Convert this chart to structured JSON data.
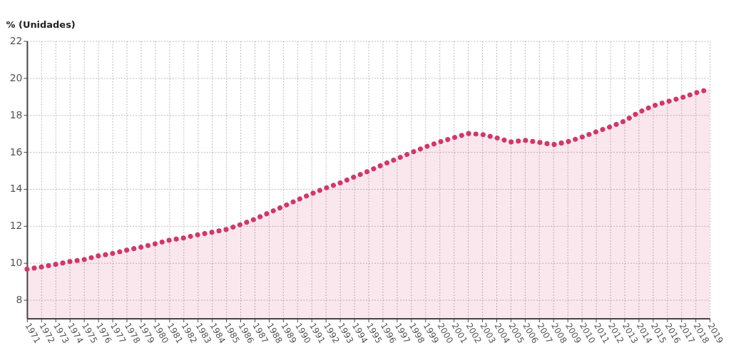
{
  "chart_data": {
    "type": "area",
    "ylabel": "% (Unidades)",
    "categories": [
      "1971",
      "1972",
      "1973",
      "1974",
      "1975",
      "1976",
      "1977",
      "1978",
      "1979",
      "1980",
      "1981",
      "1982",
      "1983",
      "1984",
      "1985",
      "1986",
      "1987",
      "1988",
      "1989",
      "1990",
      "1991",
      "1992",
      "1993",
      "1994",
      "1995",
      "1996",
      "1997",
      "1998",
      "1999",
      "2000",
      "2001",
      "2002",
      "2003",
      "2004",
      "2005",
      "2006",
      "2007",
      "2008",
      "2009",
      "2010",
      "2011",
      "2012",
      "2013",
      "2014",
      "2015",
      "2016",
      "2017",
      "2018",
      "2019"
    ],
    "series": [
      {
        "color": "#d1376b",
        "values": [
          9.66,
          9.78,
          9.92,
          10.07,
          10.18,
          10.38,
          10.51,
          10.69,
          10.85,
          11.03,
          11.23,
          11.35,
          11.52,
          11.66,
          11.81,
          12.07,
          12.36,
          12.71,
          13.05,
          13.4,
          13.74,
          14.05,
          14.32,
          14.65,
          14.96,
          15.31,
          15.63,
          15.96,
          16.27,
          16.54,
          16.77,
          17.0,
          16.95,
          16.77,
          16.54,
          16.63,
          16.52,
          16.4,
          16.55,
          16.8,
          17.09,
          17.36,
          17.67,
          18.14,
          18.49,
          18.72,
          18.93,
          19.19,
          19.4
        ]
      }
    ],
    "ylim": [
      7,
      22
    ],
    "yticks": [
      8,
      10,
      12,
      14,
      16,
      18,
      20,
      22
    ],
    "grid": true,
    "marker": "none",
    "line_style": "dotted"
  }
}
